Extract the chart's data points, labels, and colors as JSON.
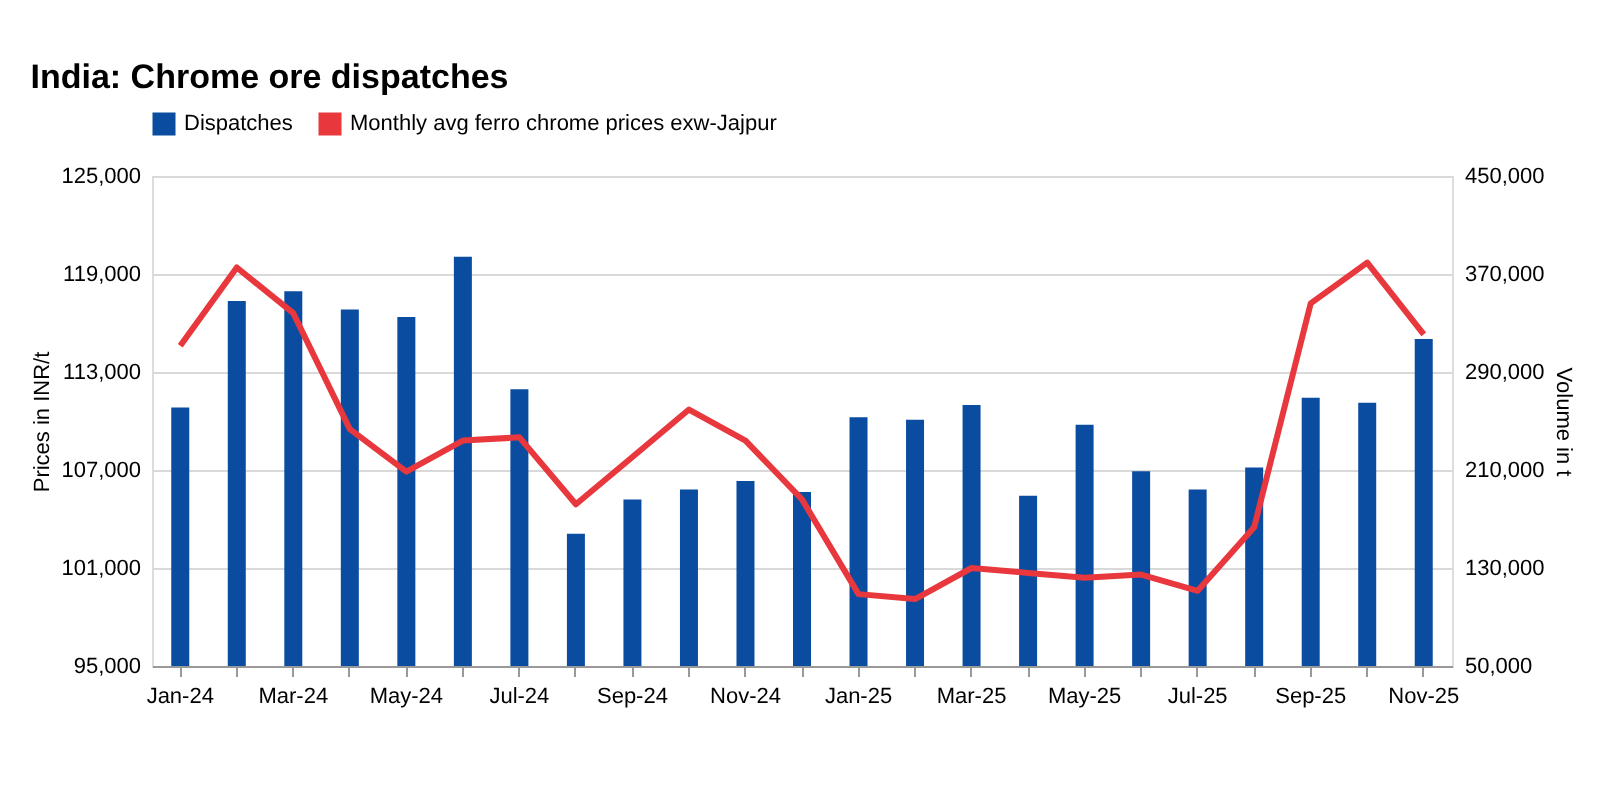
{
  "chart_data": {
    "type": "bar",
    "title": "India: Chrome ore dispatches",
    "ylabel": "Prices in INR/t",
    "y2label": "Volume in t",
    "categories": [
      "Jan-24",
      null,
      "Mar-24",
      null,
      "May-24",
      null,
      "Jul-24",
      null,
      "Sep-24",
      null,
      "Nov-24",
      null,
      "Jan-25",
      null,
      "Mar-25",
      null,
      "May-25",
      null,
      "Jul-25",
      null,
      "Sep-25",
      null,
      "Nov-25"
    ],
    "series": [
      {
        "name": "Dispatches",
        "axis": "y2",
        "color": "#0a4ca0",
        "values": [
          261000,
          348000,
          356000,
          341000,
          335000,
          384000,
          276000,
          158000,
          186000,
          194000,
          201000,
          192000,
          253000,
          251000,
          263000,
          189000,
          247000,
          209000,
          194000,
          212000,
          269000,
          265000,
          317000
        ]
      },
      {
        "name": "Monthly avg ferro chrome prices exw-Jajpur",
        "type": "line",
        "axis": "y",
        "color": "#e8383d",
        "values": [
          114600,
          119400,
          116600,
          109500,
          106900,
          108800,
          109000,
          104900,
          107800,
          110700,
          108800,
          105200,
          99400,
          99100,
          101000,
          100700,
          100400,
          100600,
          99600,
          103500,
          117200,
          119700,
          115300
        ]
      }
    ],
    "ylim": [
      95000,
      125000
    ],
    "yticks": [
      {
        "value": 95000,
        "label": "95,000"
      },
      {
        "value": 101000,
        "label": "101,000"
      },
      {
        "value": 107000,
        "label": "107,000"
      },
      {
        "value": 113000,
        "label": "113,000"
      },
      {
        "value": 119000,
        "label": "119,000"
      },
      {
        "value": 125000,
        "label": "125,000"
      }
    ],
    "y2lim": [
      50000,
      450000
    ],
    "y2ticks": [
      {
        "value": 50000,
        "label": "50,000"
      },
      {
        "value": 130000,
        "label": "130,000"
      },
      {
        "value": 210000,
        "label": "210,000"
      },
      {
        "value": 290000,
        "label": "290,000"
      },
      {
        "value": 370000,
        "label": "370,000"
      },
      {
        "value": 450000,
        "label": "450,000"
      }
    ],
    "grid": "y",
    "legend": "top left"
  }
}
